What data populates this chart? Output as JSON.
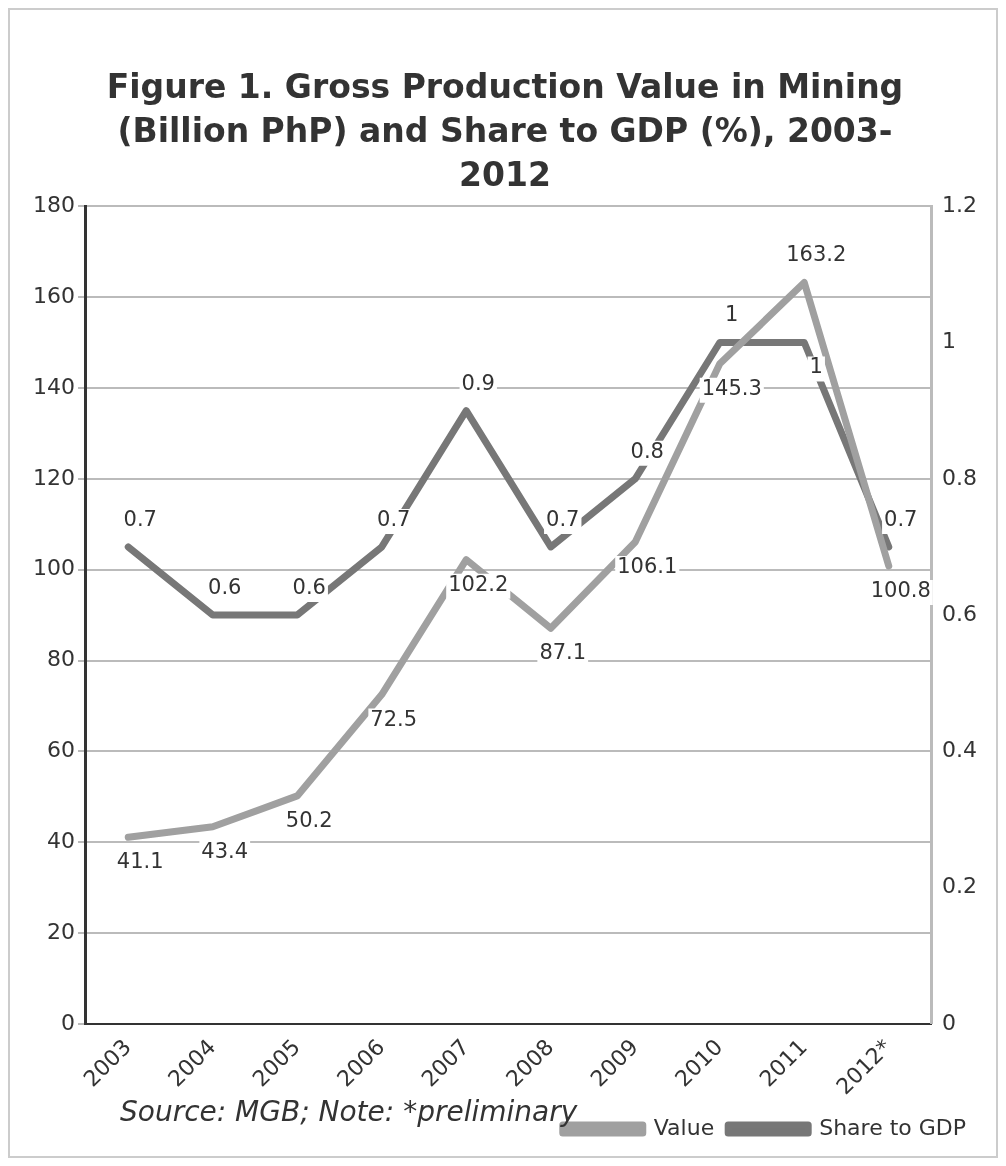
{
  "chart_data": {
    "type": "line",
    "title": "Figure 1. Gross Production Value in Mining (Billion PhP) and Share to GDP (%), 2003-2012",
    "categories": [
      "2003",
      "2004",
      "2005",
      "2006",
      "2007",
      "2008",
      "2009",
      "2010",
      "2011",
      "2012*"
    ],
    "series": [
      {
        "name": "Value",
        "color": "#a0a0a0",
        "values": [
          41.1,
          43.4,
          50.2,
          72.5,
          102.2,
          87.1,
          106.1,
          145.3,
          163.2,
          100.8
        ]
      },
      {
        "name": "Share to GDP",
        "color": "#777777",
        "axis": "y2",
        "values": [
          0.7,
          0.6,
          0.6,
          0.7,
          0.9,
          0.7,
          0.8,
          1,
          1,
          0.7
        ]
      }
    ],
    "ylim": [
      0,
      180
    ],
    "yticks": [
      0,
      20,
      40,
      60,
      80,
      100,
      120,
      140,
      160,
      180
    ],
    "y2lim": [
      0,
      1.2
    ],
    "y2ticks": [
      0,
      0.2,
      0.4,
      0.6,
      0.8,
      1,
      1.2
    ],
    "grid": "y",
    "legend": "bottom right",
    "data_labels": true,
    "marker": "none",
    "line_style": "solid",
    "annotations": [
      "Source: MGB; Note: *preliminary"
    ]
  }
}
